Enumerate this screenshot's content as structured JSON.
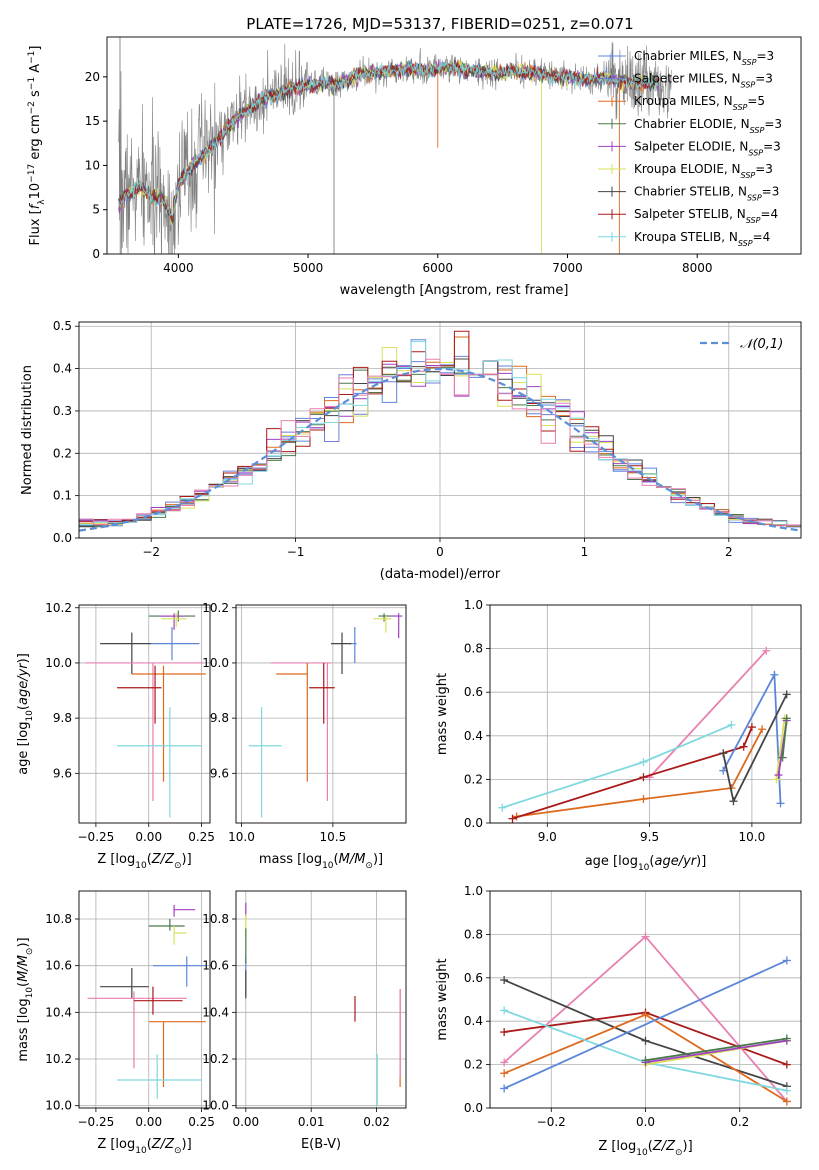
{
  "title": "PLATE=1726, MJD=53137, FIBERID=0251, z=0.071",
  "colors": {
    "chab_miles": "#5b86d8",
    "salp_miles": "#6e7ed6",
    "krou_miles": "#dd6a1e",
    "chab_elodie": "#4a7a4a",
    "salp_elodie": "#a040c0",
    "krou_elodie": "#d8e05a",
    "chab_stelib": "#444444",
    "salp_stelib": "#aa1a1a",
    "krou_stelib": "#7fd8e0",
    "pink": "#e87fb0",
    "data_gray": "#808080",
    "gaussian": "#5b8fd8"
  },
  "chart_data": [
    {
      "id": "spectrum",
      "type": "line",
      "xlabel": "wavelength [Angstrom, rest frame]",
      "ylabel": "Flux [f_λ 10^-17 erg cm^-2 s^-1 A^-1]",
      "xlim": [
        3450,
        8800
      ],
      "ylim": [
        0,
        24.5
      ],
      "xticks": [
        4000,
        5000,
        6000,
        7000,
        8000
      ],
      "yticks": [
        0,
        5,
        10,
        15,
        20
      ],
      "legend": [
        {
          "label": "Chabrier MILES, N_SSP=3",
          "color": "#5b86d8"
        },
        {
          "label": "Salpeter MILES, N_SSP=3",
          "color": "#6e7ed6"
        },
        {
          "label": "Kroupa MILES, N_SSP=5",
          "color": "#dd6a1e"
        },
        {
          "label": "Chabrier ELODIE, N_SSP=3",
          "color": "#4a7a4a"
        },
        {
          "label": "Salpeter ELODIE, N_SSP=3",
          "color": "#a040c0"
        },
        {
          "label": "Kroupa ELODIE, N_SSP=3",
          "color": "#d8e05a"
        },
        {
          "label": "Chabrier STELIB, N_SSP=3",
          "color": "#444444"
        },
        {
          "label": "Salpeter STELIB, N_SSP=4",
          "color": "#aa1a1a"
        },
        {
          "label": "Kroupa STELIB, N_SSP=4",
          "color": "#7fd8e0"
        }
      ],
      "continuum": [
        [
          3540,
          5.5
        ],
        [
          3600,
          6.8
        ],
        [
          3700,
          7.5
        ],
        [
          3800,
          6.5
        ],
        [
          3900,
          6.0
        ],
        [
          3950,
          3.8
        ],
        [
          4000,
          7.8
        ],
        [
          4100,
          10.0
        ],
        [
          4200,
          11.2
        ],
        [
          4300,
          12.8
        ],
        [
          4400,
          14.5
        ],
        [
          4500,
          16.0
        ],
        [
          4600,
          17.0
        ],
        [
          4700,
          17.7
        ],
        [
          4800,
          18.2
        ],
        [
          4900,
          18.7
        ],
        [
          5000,
          19.0
        ],
        [
          5100,
          19.3
        ],
        [
          5200,
          19.1
        ],
        [
          5300,
          19.6
        ],
        [
          5400,
          20.3
        ],
        [
          5500,
          20.5
        ],
        [
          5600,
          20.6
        ],
        [
          5700,
          20.8
        ],
        [
          5800,
          20.9
        ],
        [
          5900,
          20.7
        ],
        [
          6000,
          21.0
        ],
        [
          6100,
          21.0
        ],
        [
          6200,
          20.9
        ],
        [
          6300,
          20.7
        ],
        [
          6400,
          20.5
        ],
        [
          6500,
          20.4
        ],
        [
          6600,
          20.7
        ],
        [
          6700,
          20.5
        ],
        [
          6800,
          20.3
        ],
        [
          6900,
          20.1
        ],
        [
          7000,
          19.9
        ],
        [
          7100,
          19.8
        ],
        [
          7200,
          19.7
        ],
        [
          7300,
          19.9
        ],
        [
          7400,
          19.5
        ],
        [
          7500,
          19.3
        ]
      ],
      "data_extent": [
        3540,
        7800
      ]
    },
    {
      "id": "residuals",
      "type": "line",
      "xlabel": "(data-model)/error",
      "ylabel": "Normed distribution",
      "xlim": [
        -2.5,
        2.5
      ],
      "ylim": [
        0,
        0.51
      ],
      "xticks": [
        -2,
        -1,
        0,
        1,
        2
      ],
      "yticks": [
        0.0,
        0.1,
        0.2,
        0.3,
        0.4,
        0.5
      ],
      "legend": [
        {
          "label": "𝒩(0,1)",
          "color": "#5b8fd8"
        }
      ],
      "bin_width": 0.1
    },
    {
      "id": "age_vs_Z",
      "type": "scatter",
      "xlabel": "Z [log10(Z/Z⊙)]",
      "ylabel": "age [log10(age/yr)]",
      "xlim": [
        -0.33,
        0.29
      ],
      "ylim": [
        9.42,
        10.21
      ],
      "xticks": [
        -0.25,
        0.0,
        0.25
      ],
      "yticks": [
        9.6,
        9.8,
        10.0,
        10.2
      ],
      "points": [
        {
          "x": 0.14,
          "y": 10.17,
          "xlo": 0.0,
          "xhi": 0.22,
          "ylo": 10.15,
          "yhi": 10.19,
          "color": "#4a7a4a"
        },
        {
          "x": 0.12,
          "y": 10.17,
          "xlo": 0.05,
          "xhi": 0.17,
          "ylo": 10.12,
          "yhi": 10.18,
          "color": "#a040c0"
        },
        {
          "x": 0.13,
          "y": 10.16,
          "xlo": 0.06,
          "xhi": 0.18,
          "ylo": 10.13,
          "yhi": 10.18,
          "color": "#d8e05a"
        },
        {
          "x": 0.11,
          "y": 10.07,
          "xlo": 0.0,
          "xhi": 0.24,
          "ylo": 10.01,
          "yhi": 10.13,
          "color": "#5b86d8"
        },
        {
          "x": -0.08,
          "y": 10.07,
          "xlo": -0.23,
          "xhi": 0.01,
          "ylo": 9.96,
          "yhi": 10.11,
          "color": "#444444"
        },
        {
          "x": 0.02,
          "y": 10.0,
          "xlo": -0.3,
          "xhi": 0.26,
          "ylo": 9.5,
          "yhi": 10.0,
          "color": "#e87fb0"
        },
        {
          "x": 0.07,
          "y": 9.96,
          "xlo": -0.08,
          "xhi": 0.27,
          "ylo": 9.57,
          "yhi": 9.99,
          "color": "#dd6a1e"
        },
        {
          "x": 0.03,
          "y": 9.91,
          "xlo": -0.15,
          "xhi": 0.06,
          "ylo": 9.78,
          "yhi": 9.99,
          "color": "#aa1a1a"
        },
        {
          "x": 0.1,
          "y": 9.7,
          "xlo": -0.15,
          "xhi": 0.25,
          "ylo": 9.44,
          "yhi": 9.84,
          "color": "#7fd8e0"
        }
      ]
    },
    {
      "id": "age_vs_mass",
      "type": "scatter",
      "xlabel": "mass [log10(M/M⊙)]",
      "ylabel": "",
      "xlim": [
        9.97,
        10.9
      ],
      "ylim": [
        9.42,
        10.21
      ],
      "xticks": [
        10.0,
        10.5
      ],
      "yticks": [
        9.6,
        9.8,
        10.0,
        10.2
      ],
      "points": [
        {
          "x": 10.78,
          "y": 10.17,
          "xlo": 10.75,
          "xhi": 10.82,
          "ylo": 10.15,
          "yhi": 10.18,
          "color": "#4a7a4a"
        },
        {
          "x": 10.86,
          "y": 10.17,
          "xlo": 10.82,
          "xhi": 10.88,
          "ylo": 10.09,
          "yhi": 10.18,
          "color": "#a040c0"
        },
        {
          "x": 10.79,
          "y": 10.16,
          "xlo": 10.72,
          "xhi": 10.82,
          "ylo": 10.11,
          "yhi": 10.17,
          "color": "#d8e05a"
        },
        {
          "x": 10.62,
          "y": 10.07,
          "xlo": 10.59,
          "xhi": 10.63,
          "ylo": 10.0,
          "yhi": 10.13,
          "color": "#5b86d8"
        },
        {
          "x": 10.55,
          "y": 10.07,
          "xlo": 10.49,
          "xhi": 10.6,
          "ylo": 9.96,
          "yhi": 10.11,
          "color": "#444444"
        },
        {
          "x": 10.47,
          "y": 10.0,
          "xlo": 10.16,
          "xhi": 10.49,
          "ylo": 9.5,
          "yhi": 10.0,
          "color": "#e87fb0"
        },
        {
          "x": 10.36,
          "y": 9.96,
          "xlo": 10.19,
          "xhi": 10.36,
          "ylo": 9.57,
          "yhi": 10.0,
          "color": "#dd6a1e"
        },
        {
          "x": 10.45,
          "y": 9.91,
          "xlo": 10.37,
          "xhi": 10.51,
          "ylo": 9.78,
          "yhi": 10.0,
          "color": "#aa1a1a"
        },
        {
          "x": 10.11,
          "y": 9.7,
          "xlo": 10.04,
          "xhi": 10.22,
          "ylo": 9.44,
          "yhi": 9.84,
          "color": "#7fd8e0"
        }
      ]
    },
    {
      "id": "weight_vs_age",
      "type": "line",
      "xlabel": "age [log10(age/yr)]",
      "ylabel": "mass weight",
      "xlim": [
        8.72,
        10.24
      ],
      "ylim": [
        0,
        1.0
      ],
      "xticks": [
        9.0,
        9.5,
        10.0
      ],
      "yticks": [
        0.0,
        0.2,
        0.4,
        0.6,
        0.8,
        1.0
      ],
      "series": [
        {
          "color": "#e87fb0",
          "x": [
            9.5,
            10.07
          ],
          "y": [
            0.21,
            0.79
          ]
        },
        {
          "color": "#7fd8e0",
          "x": [
            8.78,
            9.47,
            9.9
          ],
          "y": [
            0.07,
            0.28,
            0.45
          ]
        },
        {
          "color": "#dd6a1e",
          "x": [
            8.85,
            9.47,
            9.9,
            10.05
          ],
          "y": [
            0.03,
            0.11,
            0.16,
            0.43
          ]
        },
        {
          "color": "#aa1a1a",
          "x": [
            8.83,
            9.47,
            9.96,
            10.0
          ],
          "y": [
            0.02,
            0.21,
            0.35,
            0.44
          ]
        },
        {
          "color": "#5b86d8",
          "x": [
            9.86,
            10.11,
            10.14
          ],
          "y": [
            0.24,
            0.68,
            0.09
          ]
        },
        {
          "color": "#444444",
          "x": [
            9.86,
            9.91,
            10.17
          ],
          "y": [
            0.32,
            0.1,
            0.59
          ]
        },
        {
          "color": "#d8e05a",
          "x": [
            10.12,
            10.16
          ],
          "y": [
            0.2,
            0.48
          ]
        },
        {
          "color": "#a040c0",
          "x": [
            10.13,
            10.17
          ],
          "y": [
            0.22,
            0.47
          ]
        },
        {
          "color": "#4a7a4a",
          "x": [
            10.15,
            10.17
          ],
          "y": [
            0.3,
            0.48
          ]
        }
      ]
    },
    {
      "id": "mass_vs_Z",
      "type": "scatter",
      "xlabel": "Z [log10(Z/Z⊙)]",
      "ylabel": "mass [log10(M/M⊙)]",
      "xlim": [
        -0.33,
        0.29
      ],
      "ylim": [
        9.99,
        10.92
      ],
      "xticks": [
        -0.25,
        0.0,
        0.25
      ],
      "yticks": [
        10.0,
        10.2,
        10.4,
        10.6,
        10.8
      ],
      "points": [
        {
          "x": 0.12,
          "y": 10.84,
          "xlo": 0.12,
          "xhi": 0.22,
          "ylo": 10.81,
          "yhi": 10.86,
          "color": "#a040c0"
        },
        {
          "x": 0.1,
          "y": 10.77,
          "xlo": 0.0,
          "xhi": 0.17,
          "ylo": 10.75,
          "yhi": 10.8,
          "color": "#4a7a4a"
        },
        {
          "x": 0.12,
          "y": 10.74,
          "xlo": 0.12,
          "xhi": 0.18,
          "ylo": 10.69,
          "yhi": 10.77,
          "color": "#d8e05a"
        },
        {
          "x": 0.18,
          "y": 10.6,
          "xlo": 0.02,
          "xhi": 0.27,
          "ylo": 10.51,
          "yhi": 10.64,
          "color": "#5b86d8"
        },
        {
          "x": -0.08,
          "y": 10.51,
          "xlo": -0.23,
          "xhi": 0.0,
          "ylo": 10.46,
          "yhi": 10.59,
          "color": "#444444"
        },
        {
          "x": -0.07,
          "y": 10.46,
          "xlo": -0.29,
          "xhi": 0.18,
          "ylo": 10.16,
          "yhi": 10.49,
          "color": "#e87fb0"
        },
        {
          "x": 0.02,
          "y": 10.45,
          "xlo": -0.07,
          "xhi": 0.16,
          "ylo": 10.39,
          "yhi": 10.51,
          "color": "#aa1a1a"
        },
        {
          "x": 0.07,
          "y": 10.36,
          "xlo": 0.0,
          "xhi": 0.27,
          "ylo": 10.08,
          "yhi": 10.36,
          "color": "#dd6a1e"
        },
        {
          "x": 0.04,
          "y": 10.11,
          "xlo": -0.15,
          "xhi": 0.25,
          "ylo": 10.03,
          "yhi": 10.22,
          "color": "#7fd8e0"
        }
      ]
    },
    {
      "id": "mass_vs_ebv",
      "type": "scatter",
      "xlabel": "E(B-V)",
      "ylabel": "",
      "xlim": [
        -0.0015,
        0.0245
      ],
      "ylim": [
        9.99,
        10.92
      ],
      "xticks": [
        0.0,
        0.01,
        0.02
      ],
      "yticks": [
        10.0,
        10.2,
        10.4,
        10.6,
        10.8
      ],
      "points": [
        {
          "x": 0.0,
          "y": 10.84,
          "ylo": 10.81,
          "yhi": 10.87,
          "color": "#a040c0"
        },
        {
          "x": 0.0,
          "y": 10.77,
          "ylo": 10.72,
          "yhi": 10.82,
          "color": "#d8e05a"
        },
        {
          "x": 0.0,
          "y": 10.56,
          "ylo": 10.47,
          "yhi": 10.64,
          "color": "#5b86d8"
        },
        {
          "x": 0.0,
          "y": 10.51,
          "ylo": 10.46,
          "yhi": 10.58,
          "color": "#444444"
        },
        {
          "x": 0.0,
          "y": 10.7,
          "ylo": 10.61,
          "yhi": 10.76,
          "color": "#4a7a4a"
        },
        {
          "x": 0.0167,
          "y": 10.42,
          "ylo": 10.36,
          "yhi": 10.47,
          "color": "#aa1a1a"
        },
        {
          "x": 0.0236,
          "y": 10.29,
          "ylo": 10.08,
          "yhi": 10.5,
          "color": "#dd6a1e"
        },
        {
          "x": 0.0236,
          "y": 10.3,
          "ylo": 10.12,
          "yhi": 10.5,
          "color": "#e87fb0"
        },
        {
          "x": 0.0201,
          "y": 10.11,
          "ylo": 10.0,
          "yhi": 10.22,
          "color": "#7fd8e0"
        }
      ]
    },
    {
      "id": "weight_vs_Z",
      "type": "line",
      "xlabel": "Z [log10(Z/Z⊙)]",
      "ylabel": "mass weight",
      "xlim": [
        -0.33,
        0.33
      ],
      "ylim": [
        0,
        1.0
      ],
      "xticks": [
        -0.2,
        0.0,
        0.2
      ],
      "yticks": [
        0.0,
        0.2,
        0.4,
        0.6,
        0.8,
        1.0
      ],
      "series": [
        {
          "color": "#e87fb0",
          "x": [
            -0.3,
            0.0,
            0.3
          ],
          "y": [
            0.21,
            0.79,
            0.03
          ]
        },
        {
          "color": "#444444",
          "x": [
            -0.3,
            0.0,
            0.3
          ],
          "y": [
            0.59,
            0.31,
            0.1
          ]
        },
        {
          "color": "#aa1a1a",
          "x": [
            -0.3,
            0.0,
            0.3
          ],
          "y": [
            0.35,
            0.44,
            0.2
          ]
        },
        {
          "color": "#dd6a1e",
          "x": [
            -0.3,
            0.0,
            0.3
          ],
          "y": [
            0.16,
            0.43,
            0.03
          ]
        },
        {
          "color": "#7fd8e0",
          "x": [
            -0.3,
            0.0,
            0.3
          ],
          "y": [
            0.45,
            0.21,
            0.08
          ]
        },
        {
          "color": "#5b86d8",
          "x": [
            -0.3,
            0.3
          ],
          "y": [
            0.09,
            0.68
          ]
        },
        {
          "color": "#d8e05a",
          "x": [
            0.0,
            0.3
          ],
          "y": [
            0.2,
            0.31
          ]
        },
        {
          "color": "#a040c0",
          "x": [
            0.0,
            0.3
          ],
          "y": [
            0.21,
            0.31
          ]
        },
        {
          "color": "#4a7a4a",
          "x": [
            0.0,
            0.3
          ],
          "y": [
            0.22,
            0.32
          ]
        }
      ]
    }
  ]
}
